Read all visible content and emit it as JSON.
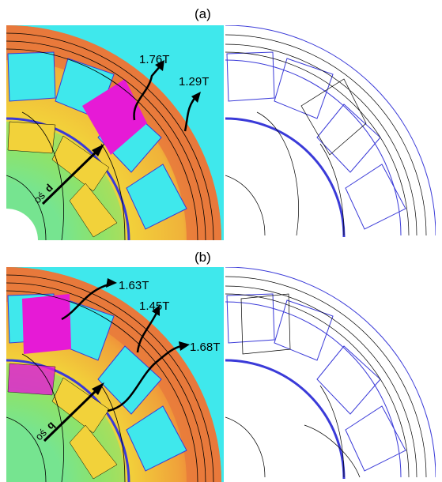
{
  "figure": {
    "panel_a": {
      "label": "(a)",
      "annotations": [
        "1.76T",
        "1.29T"
      ],
      "axis_label": "oś",
      "axis_symbol": "d"
    },
    "panel_b": {
      "label": "(b)",
      "annotations": [
        "1.63T",
        "1.45T",
        "1.68T"
      ],
      "axis_label": "oś",
      "axis_symbol": "q"
    }
  },
  "colors": {
    "cyan": "#3fe8ec",
    "green": "#8ee36a",
    "yellow": "#f2d23a",
    "orange": "#ee7a3a",
    "magenta": "#e61ad6",
    "blue_outline": "#3a3ad8",
    "line": "#000000"
  },
  "icons": [
    "arrow-icon"
  ]
}
